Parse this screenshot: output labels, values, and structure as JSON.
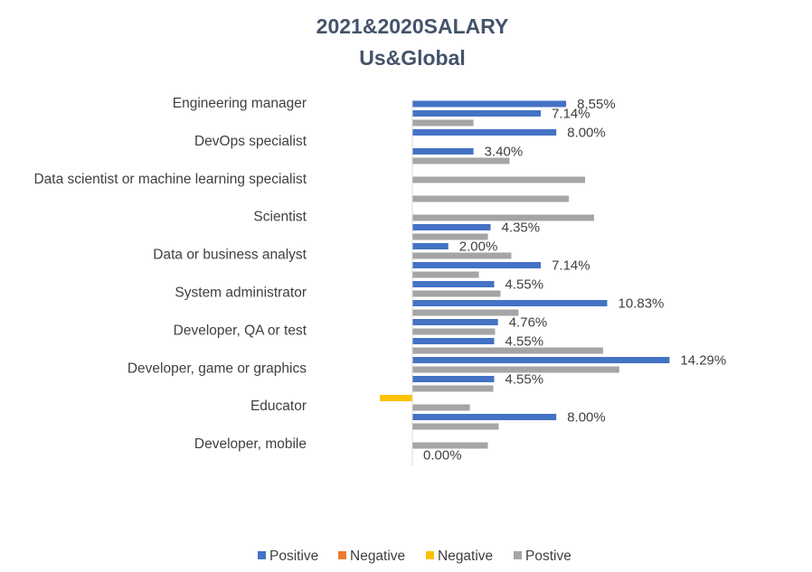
{
  "chart_data": {
    "type": "bar",
    "orientation": "horizontal",
    "title": "2021&2020SALARY",
    "subtitle": "Us&Global",
    "category_labels": [
      "Engineering manager",
      "DevOps specialist",
      "Data scientist or machine learning specialist",
      "Scientist",
      "Data or business analyst",
      "System administrator",
      "Developer, QA or test",
      "Developer, game or graphics",
      "Educator",
      "Developer, mobile"
    ],
    "bars": [
      {
        "series": 0,
        "value": 8.55,
        "label": "8.55%"
      },
      {
        "series": 0,
        "value": 7.14,
        "label": "7.14%"
      },
      {
        "series": 3,
        "value": 3.4,
        "label": ""
      },
      {
        "series": 0,
        "value": 8.0,
        "label": "8.00%"
      },
      {
        "series": 3,
        "value": 0,
        "label": ""
      },
      {
        "series": 0,
        "value": 3.4,
        "label": "3.40%"
      },
      {
        "series": 3,
        "value": 5.4,
        "label": ""
      },
      {
        "series": 0,
        "value": 0,
        "label": ""
      },
      {
        "series": 3,
        "value": 9.6,
        "label": ""
      },
      {
        "series": 0,
        "value": 0,
        "label": ""
      },
      {
        "series": 3,
        "value": 8.7,
        "label": ""
      },
      {
        "series": 0,
        "value": 0,
        "label": ""
      },
      {
        "series": 3,
        "value": 10.1,
        "label": ""
      },
      {
        "series": 0,
        "value": 4.35,
        "label": "4.35%"
      },
      {
        "series": 3,
        "value": 4.2,
        "label": ""
      },
      {
        "series": 0,
        "value": 2.0,
        "label": "2.00%"
      },
      {
        "series": 3,
        "value": 5.5,
        "label": ""
      },
      {
        "series": 0,
        "value": 7.14,
        "label": "7.14%"
      },
      {
        "series": 3,
        "value": 3.7,
        "label": ""
      },
      {
        "series": 0,
        "value": 4.55,
        "label": "4.55%"
      },
      {
        "series": 3,
        "value": 4.9,
        "label": ""
      },
      {
        "series": 0,
        "value": 10.83,
        "label": "10.83%"
      },
      {
        "series": 3,
        "value": 5.9,
        "label": ""
      },
      {
        "series": 0,
        "value": 4.76,
        "label": "4.76%"
      },
      {
        "series": 3,
        "value": 4.6,
        "label": ""
      },
      {
        "series": 0,
        "value": 4.55,
        "label": "4.55%"
      },
      {
        "series": 3,
        "value": 10.6,
        "label": ""
      },
      {
        "series": 0,
        "value": 14.29,
        "label": "14.29%"
      },
      {
        "series": 3,
        "value": 11.5,
        "label": ""
      },
      {
        "series": 0,
        "value": 4.55,
        "label": "4.55%"
      },
      {
        "series": 3,
        "value": 4.5,
        "label": ""
      },
      {
        "series": 2,
        "value": -1.8,
        "label": ""
      },
      {
        "series": 3,
        "value": 3.2,
        "label": ""
      },
      {
        "series": 0,
        "value": 8.0,
        "label": "8.00%"
      },
      {
        "series": 3,
        "value": 4.8,
        "label": ""
      },
      {
        "series": 0,
        "value": 0,
        "label": ""
      },
      {
        "series": 3,
        "value": 4.2,
        "label": ""
      },
      {
        "series": 0,
        "value": 0,
        "label": "0.00%"
      }
    ],
    "xlim": [
      -2,
      16
    ],
    "legend": [
      {
        "name": "Positive",
        "color": "#4472C4"
      },
      {
        "name": "Negative",
        "color": "#ED7D31"
      },
      {
        "name": "Negative",
        "color": "#FFC000"
      },
      {
        "name": "Postive",
        "color": "#A5A5A5"
      }
    ],
    "legend_position": "bottom",
    "grid": false
  }
}
